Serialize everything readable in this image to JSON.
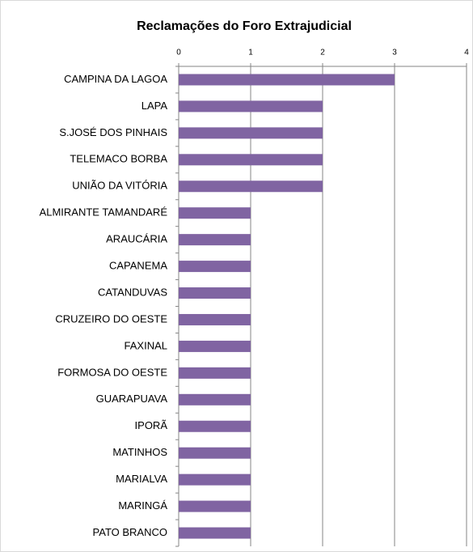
{
  "chart_data": {
    "type": "barh",
    "title": "Reclamações do Foro Extrajudicial",
    "categories": [
      "CAMPINA DA LAGOA",
      "LAPA",
      "S.JOSÉ DOS PINHAIS",
      "TELEMACO BORBA",
      "UNIÃO DA VITÓRIA",
      "ALMIRANTE TAMANDARÉ",
      "ARAUCÁRIA",
      "CAPANEMA",
      "CATANDUVAS",
      "CRUZEIRO DO OESTE",
      "FAXINAL",
      "FORMOSA DO OESTE",
      "GUARAPUAVA",
      "IPORÃ",
      "MATINHOS",
      "MARIALVA",
      "MARINGÁ",
      "PATO BRANCO"
    ],
    "values": [
      3,
      2,
      2,
      2,
      2,
      1,
      1,
      1,
      1,
      1,
      1,
      1,
      1,
      1,
      1,
      1,
      1,
      1
    ],
    "color": "#8064a2",
    "xlim": [
      0,
      4
    ],
    "xticks": [
      0,
      1,
      2,
      3,
      4
    ],
    "grid": true
  }
}
